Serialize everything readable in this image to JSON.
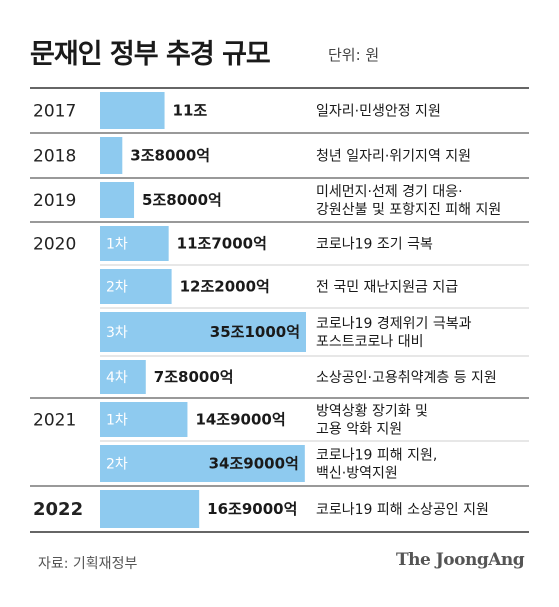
{
  "header": {
    "title": "문재인 정부 추경 규모",
    "unit": "단위: 원"
  },
  "footer": {
    "source": "자료: 기획재정부",
    "brand": "The JoongAng"
  },
  "colors": {
    "bar": "#8ecaef",
    "tag_bar": "#8ecaef",
    "rule_strong": "#333333",
    "rule_light": "#cfcfcf"
  },
  "chart_data": {
    "type": "bar",
    "title": "문재인 정부 추경 규모",
    "unit": "원",
    "rows": [
      {
        "year": "2017",
        "round": "",
        "value_label": "11조",
        "value": 11,
        "desc": [
          "일자리·민생안정 지원"
        ]
      },
      {
        "year": "2018",
        "round": "",
        "value_label": "3조8000억",
        "value": 3.8,
        "desc": [
          "청년 일자리·위기지역 지원"
        ]
      },
      {
        "year": "2019",
        "round": "",
        "value_label": "5조8000억",
        "value": 5.8,
        "desc": [
          "미세먼지·선제 경기 대응·",
          "강원산불 및 포항지진 피해 지원"
        ]
      },
      {
        "year": "2020",
        "round": "1차",
        "value_label": "11조7000억",
        "value": 11.7,
        "desc": [
          "코로나19 조기 극복"
        ]
      },
      {
        "year": "",
        "round": "2차",
        "value_label": "12조2000억",
        "value": 12.2,
        "desc": [
          "전 국민 재난지원금 지급"
        ]
      },
      {
        "year": "",
        "round": "3차",
        "value_label": "35조1000억",
        "value": 35.1,
        "desc": [
          "코로나19 경제위기 극복과",
          "포스트코로나 대비"
        ]
      },
      {
        "year": "",
        "round": "4차",
        "value_label": "7조8000억",
        "value": 7.8,
        "desc": [
          "소상공인·고용취약계층 등 지원"
        ]
      },
      {
        "year": "2021",
        "round": "1차",
        "value_label": "14조9000억",
        "value": 14.9,
        "desc": [
          "방역상황 장기화 및",
          "고용 악화 지원"
        ]
      },
      {
        "year": "",
        "round": "2차",
        "value_label": "34조9000억",
        "value": 34.9,
        "desc": [
          "코로나19 피해 지원,",
          "백신·방역지원"
        ]
      },
      {
        "year": "2022",
        "round": "",
        "value_label": "16조9000억",
        "value": 16.9,
        "desc": [
          "코로나19 피해 소상공인 지원"
        ],
        "bold_year": true
      }
    ]
  }
}
